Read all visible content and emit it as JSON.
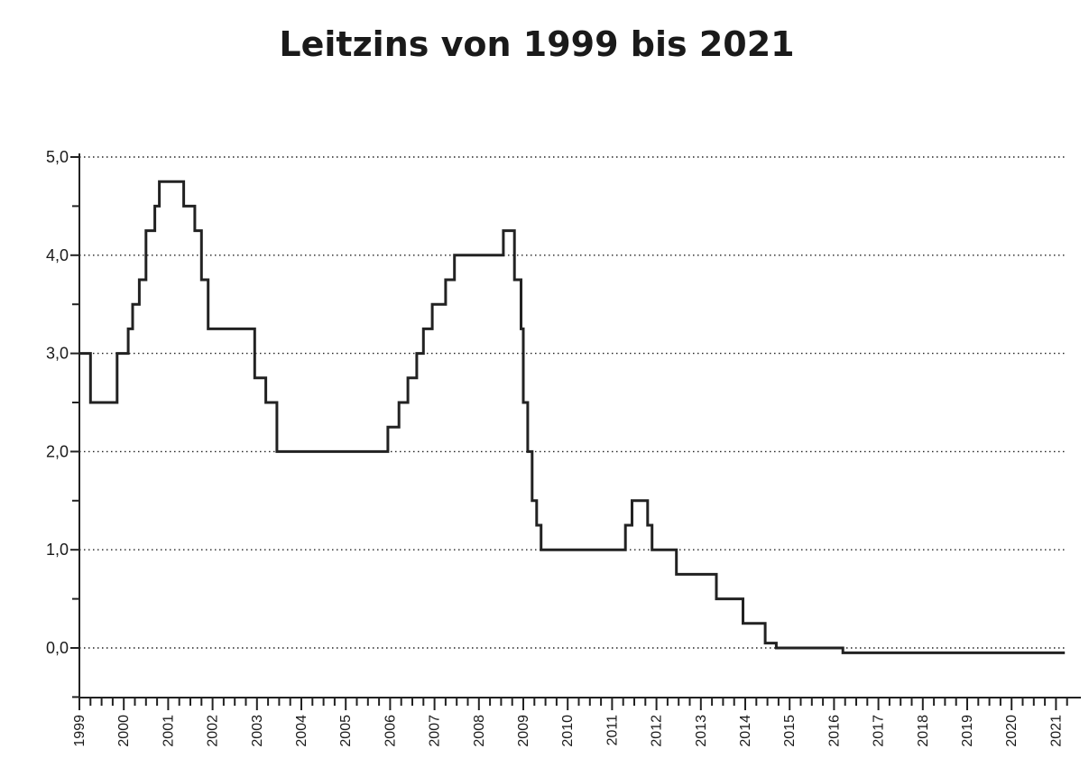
{
  "chart_data": {
    "type": "line",
    "title": "Leitzins von 1999 bis 2021",
    "xlabel": "",
    "ylabel": "",
    "ylim": [
      -0.5,
      5.0
    ],
    "xlim": [
      1999.0,
      2021.2
    ],
    "grid": true,
    "y_ticks": [
      "0,0",
      "1,0",
      "2,0",
      "3,0",
      "4,0",
      "5,0"
    ],
    "y_tick_values": [
      0,
      1,
      2,
      3,
      4,
      5
    ],
    "x_ticks": [
      "1999",
      "2000",
      "2001",
      "2002",
      "2003",
      "2004",
      "2005",
      "2006",
      "2007",
      "2008",
      "2009",
      "2010",
      "2011",
      "2012",
      "2013",
      "2014",
      "2015",
      "2016",
      "2017",
      "2018",
      "2019",
      "2020",
      "2021"
    ],
    "step": true,
    "series": [
      {
        "name": "",
        "points": [
          [
            1999.0,
            3.0
          ],
          [
            1999.25,
            2.5
          ],
          [
            1999.85,
            3.0
          ],
          [
            2000.1,
            3.25
          ],
          [
            2000.2,
            3.5
          ],
          [
            2000.35,
            3.75
          ],
          [
            2000.5,
            4.25
          ],
          [
            2000.7,
            4.5
          ],
          [
            2000.8,
            4.75
          ],
          [
            2001.35,
            4.5
          ],
          [
            2001.6,
            4.25
          ],
          [
            2001.75,
            3.75
          ],
          [
            2001.9,
            3.25
          ],
          [
            2002.95,
            2.75
          ],
          [
            2003.2,
            2.5
          ],
          [
            2003.45,
            2.0
          ],
          [
            2005.95,
            2.25
          ],
          [
            2006.2,
            2.5
          ],
          [
            2006.4,
            2.75
          ],
          [
            2006.6,
            3.0
          ],
          [
            2006.75,
            3.25
          ],
          [
            2006.95,
            3.5
          ],
          [
            2007.25,
            3.75
          ],
          [
            2007.45,
            4.0
          ],
          [
            2008.55,
            4.25
          ],
          [
            2008.8,
            3.75
          ],
          [
            2008.95,
            3.25
          ],
          [
            2009.0,
            2.5
          ],
          [
            2009.1,
            2.0
          ],
          [
            2009.2,
            1.5
          ],
          [
            2009.3,
            1.25
          ],
          [
            2009.4,
            1.0
          ],
          [
            2011.3,
            1.25
          ],
          [
            2011.45,
            1.5
          ],
          [
            2011.8,
            1.25
          ],
          [
            2011.9,
            1.0
          ],
          [
            2012.45,
            0.75
          ],
          [
            2013.35,
            0.5
          ],
          [
            2013.95,
            0.25
          ],
          [
            2014.45,
            0.05
          ],
          [
            2014.7,
            0.0
          ],
          [
            2016.2,
            -0.05
          ],
          [
            2021.2,
            -0.05
          ]
        ]
      }
    ]
  }
}
